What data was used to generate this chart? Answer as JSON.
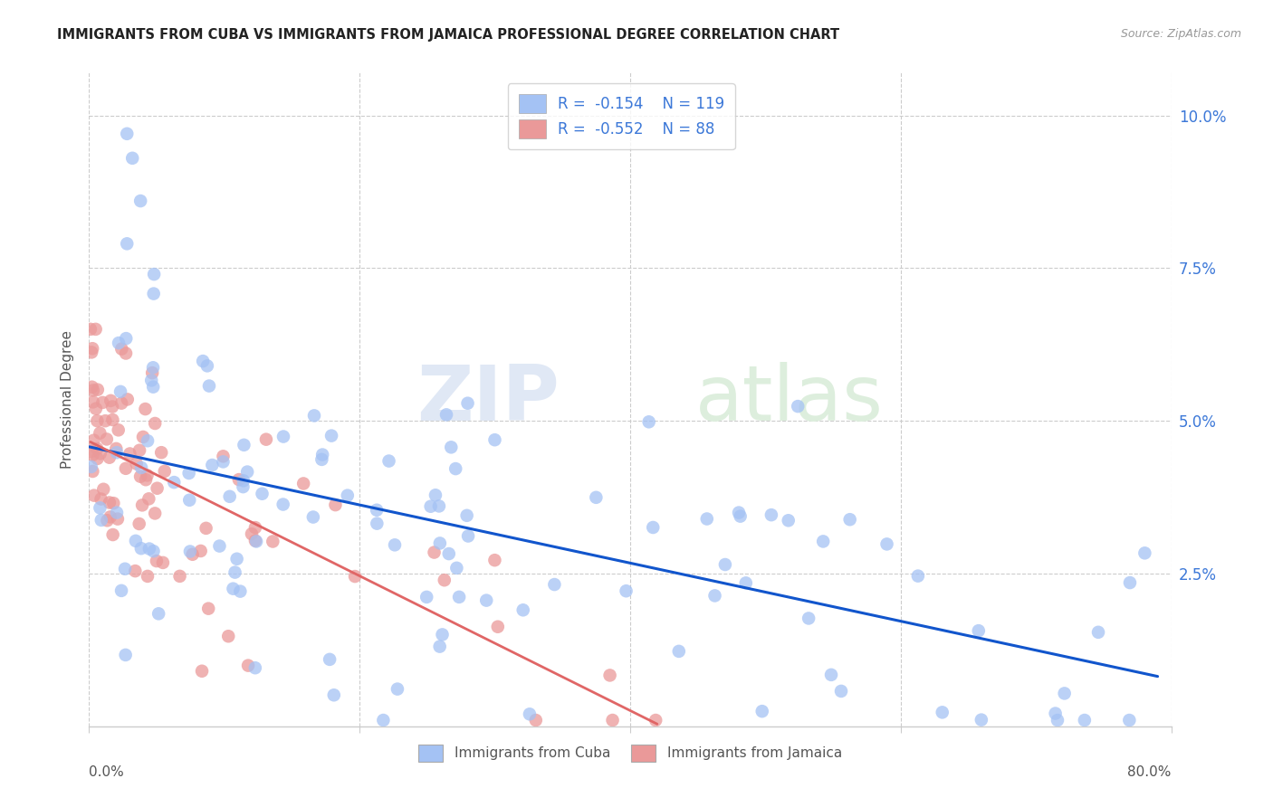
{
  "title": "IMMIGRANTS FROM CUBA VS IMMIGRANTS FROM JAMAICA PROFESSIONAL DEGREE CORRELATION CHART",
  "source": "Source: ZipAtlas.com",
  "ylabel": "Professional Degree",
  "ytick_labels": [
    "2.5%",
    "5.0%",
    "7.5%",
    "10.0%"
  ],
  "ytick_values": [
    0.025,
    0.05,
    0.075,
    0.1
  ],
  "xlim": [
    0.0,
    0.8
  ],
  "ylim": [
    0.0,
    0.107
  ],
  "legend_cuba": "Immigrants from Cuba",
  "legend_jamaica": "Immigrants from Jamaica",
  "R_cuba": "-0.154",
  "N_cuba": "119",
  "R_jamaica": "-0.552",
  "N_jamaica": "88",
  "color_cuba": "#a4c2f4",
  "color_jamaica": "#ea9999",
  "trendline_cuba_color": "#1155cc",
  "trendline_jamaica_color": "#e06666",
  "watermark_zip": "ZIP",
  "watermark_atlas": "atlas",
  "background_color": "#ffffff"
}
